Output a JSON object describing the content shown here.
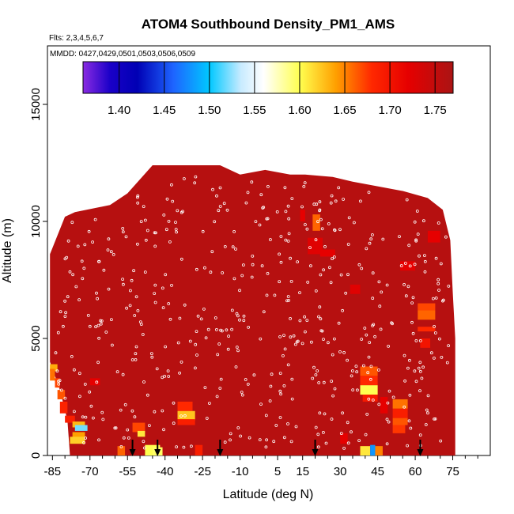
{
  "chart_data": {
    "type": "heatmap",
    "title": "ATOM4 Southbound Density_PM1_AMS",
    "subtitle": "Flts: 2,3,4,5,6,7",
    "annotation": "MMDD: 0427,0429,0501,0503,0506,0509",
    "xlabel": "Latitude (deg N)",
    "ylabel": "Altitude (m)",
    "xlim": [
      -87,
      90
    ],
    "ylim": [
      0,
      17500
    ],
    "x_ticks": [
      -85,
      -70,
      -55,
      -40,
      -25,
      -10,
      5,
      15,
      30,
      45,
      60,
      75
    ],
    "x_tick_labels": [
      "-85",
      "-70",
      "-55",
      "-40",
      "-25",
      "-10",
      "5",
      "15",
      "30",
      "45",
      "60",
      "75"
    ],
    "y_ticks": [
      0,
      5000,
      10000,
      15000
    ],
    "y_tick_labels": [
      "0",
      "5000",
      "10000",
      "15000"
    ],
    "colorbar": {
      "range": [
        1.36,
        1.77
      ],
      "ticks": [
        1.4,
        1.45,
        1.5,
        1.55,
        1.6,
        1.65,
        1.7,
        1.75
      ],
      "tick_labels": [
        "1.40",
        "1.45",
        "1.50",
        "1.55",
        "1.60",
        "1.65",
        "1.70",
        "1.75"
      ],
      "stops": [
        {
          "v": 1.36,
          "color": "#8a2be2"
        },
        {
          "v": 1.39,
          "color": "#1a00c8"
        },
        {
          "v": 1.42,
          "color": "#0000b4"
        },
        {
          "v": 1.46,
          "color": "#1e64ff"
        },
        {
          "v": 1.5,
          "color": "#00c8ff"
        },
        {
          "v": 1.535,
          "color": "#c8ebff"
        },
        {
          "v": 1.56,
          "color": "#ffffff"
        },
        {
          "v": 1.6,
          "color": "#ffff50"
        },
        {
          "v": 1.64,
          "color": "#ffa000"
        },
        {
          "v": 1.68,
          "color": "#ff2800"
        },
        {
          "v": 1.72,
          "color": "#e60000"
        },
        {
          "v": 1.77,
          "color": "#aa1414"
        }
      ]
    },
    "background_value": 1.76,
    "field_extent": {
      "x": [
        -86,
        76
      ],
      "top_profile": [
        [
          -86,
          8600
        ],
        [
          -80,
          10200
        ],
        [
          -76,
          10400
        ],
        [
          -62,
          10700
        ],
        [
          -55,
          11200
        ],
        [
          -45,
          12400
        ],
        [
          -18,
          12400
        ],
        [
          -10,
          12000
        ],
        [
          0,
          12200
        ],
        [
          10,
          12000
        ],
        [
          16,
          12000
        ],
        [
          27,
          11900
        ],
        [
          35,
          11700
        ],
        [
          45,
          11500
        ],
        [
          55,
          11300
        ],
        [
          65,
          11000
        ],
        [
          71,
          10500
        ],
        [
          74,
          9200
        ],
        [
          75,
          7000
        ],
        [
          76,
          5000
        ],
        [
          76,
          0
        ]
      ],
      "bottom_profile": [
        [
          -86,
          4000
        ],
        [
          -82,
          2800
        ],
        [
          -79,
          1500
        ],
        [
          -78,
          0
        ]
      ]
    },
    "cells": [
      {
        "lat": -86,
        "lat2": -83,
        "alt": 3900,
        "alt2": 3600,
        "value": 1.635
      },
      {
        "lat": -86,
        "lat2": -84,
        "alt": 3700,
        "alt2": 3200,
        "value": 1.655
      },
      {
        "lat": -84,
        "lat2": -82,
        "alt": 3300,
        "alt2": 2900,
        "value": 1.67
      },
      {
        "lat": -83,
        "lat2": -80,
        "alt": 2800,
        "alt2": 2400,
        "value": 1.665
      },
      {
        "lat": -82,
        "lat2": -79,
        "alt": 2300,
        "alt2": 1800,
        "value": 1.685
      },
      {
        "lat": -80,
        "lat2": -76,
        "alt": 1700,
        "alt2": 1400,
        "value": 1.69
      },
      {
        "lat": -77,
        "lat2": -72,
        "alt": 1450,
        "alt2": 1200,
        "value": 1.63
      },
      {
        "lat": -76,
        "lat2": -71,
        "alt": 1300,
        "alt2": 1050,
        "value": 1.52
      },
      {
        "lat": -77,
        "lat2": -72,
        "alt": 1000,
        "alt2": 750,
        "value": 1.64
      },
      {
        "lat": -78,
        "lat2": -72,
        "alt": 800,
        "alt2": 500,
        "value": 1.62
      },
      {
        "lat": -59,
        "lat2": -56,
        "alt": 400,
        "alt2": 0,
        "value": 1.66
      },
      {
        "lat": -53,
        "lat2": -48,
        "alt": 1400,
        "alt2": 1000,
        "value": 1.67
      },
      {
        "lat": -51,
        "lat2": -48,
        "alt": 1050,
        "alt2": 800,
        "value": 1.61
      },
      {
        "lat": -48,
        "lat2": -42,
        "alt": 450,
        "alt2": 0,
        "value": 1.6
      },
      {
        "lat": -45,
        "lat2": -41,
        "alt": 350,
        "alt2": 0,
        "value": 1.595
      },
      {
        "lat": -35,
        "lat2": -29,
        "alt": 2300,
        "alt2": 1900,
        "value": 1.68
      },
      {
        "lat": -35,
        "lat2": -28,
        "alt": 1900,
        "alt2": 1500,
        "value": 1.625
      },
      {
        "lat": -35,
        "lat2": -28,
        "alt": 1550,
        "alt2": 1300,
        "value": 1.69
      },
      {
        "lat": -28,
        "lat2": -25,
        "alt": 450,
        "alt2": 0,
        "value": 1.69
      },
      {
        "lat": 14,
        "lat2": 16,
        "alt": 10500,
        "alt2": 10000,
        "value": 1.72
      },
      {
        "lat": 19,
        "lat2": 22,
        "alt": 10300,
        "alt2": 9600,
        "value": 1.66
      },
      {
        "lat": 17,
        "lat2": 23,
        "alt": 9300,
        "alt2": 8600,
        "value": 1.725
      },
      {
        "lat": 22,
        "lat2": 28,
        "alt": 8800,
        "alt2": 8500,
        "value": 1.72
      },
      {
        "lat": 30,
        "lat2": 33,
        "alt": 950,
        "alt2": 500,
        "value": 1.72
      },
      {
        "lat": 38,
        "lat2": 45,
        "alt": 3800,
        "alt2": 3400,
        "value": 1.665
      },
      {
        "lat": 38,
        "lat2": 45,
        "alt": 3400,
        "alt2": 3000,
        "value": 1.68
      },
      {
        "lat": 38,
        "lat2": 45,
        "alt": 3000,
        "alt2": 2600,
        "value": 1.6
      },
      {
        "lat": 39,
        "lat2": 45,
        "alt": 2600,
        "alt2": 2300,
        "value": 1.695
      },
      {
        "lat": 38,
        "lat2": 42,
        "alt": 400,
        "alt2": 0,
        "value": 1.61
      },
      {
        "lat": 42,
        "lat2": 44,
        "alt": 450,
        "alt2": 0,
        "value": 1.48
      },
      {
        "lat": 44,
        "lat2": 47,
        "alt": 400,
        "alt2": 0,
        "value": 1.65
      },
      {
        "lat": 46,
        "lat2": 49,
        "alt": 2500,
        "alt2": 1800,
        "value": 1.72
      },
      {
        "lat": 51,
        "lat2": 57,
        "alt": 2400,
        "alt2": 2000,
        "value": 1.655
      },
      {
        "lat": 51,
        "lat2": 57,
        "alt": 2000,
        "alt2": 1600,
        "value": 1.69
      },
      {
        "lat": 51,
        "lat2": 57,
        "alt": 1600,
        "alt2": 1300,
        "value": 1.665
      },
      {
        "lat": 51,
        "lat2": 56,
        "alt": 1300,
        "alt2": 950,
        "value": 1.675
      },
      {
        "lat": 61,
        "lat2": 68,
        "alt": 6500,
        "alt2": 6200,
        "value": 1.67
      },
      {
        "lat": 61,
        "lat2": 68,
        "alt": 6200,
        "alt2": 5800,
        "value": 1.66
      },
      {
        "lat": 61,
        "lat2": 68,
        "alt": 5500,
        "alt2": 5300,
        "value": 1.68
      },
      {
        "lat": 62,
        "lat2": 66,
        "alt": 5000,
        "alt2": 4600,
        "value": 1.7
      },
      {
        "lat": 54,
        "lat2": 60,
        "alt": 8300,
        "alt2": 7900,
        "value": 1.72
      },
      {
        "lat": 65,
        "lat2": 70,
        "alt": 9600,
        "alt2": 9100,
        "value": 1.72
      },
      {
        "lat": 34,
        "lat2": 38,
        "alt": 7300,
        "alt2": 6900,
        "value": 1.725
      },
      {
        "lat": -70,
        "lat2": -66,
        "alt": 3300,
        "alt2": 3000,
        "value": 1.72
      }
    ],
    "vertical_profile_markers_lat": [
      -53,
      -43,
      -18,
      20,
      62
    ]
  }
}
